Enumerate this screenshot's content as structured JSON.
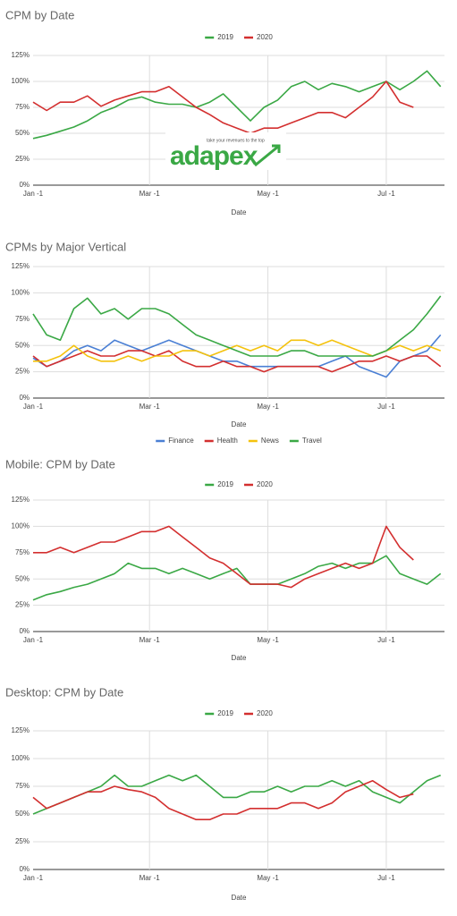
{
  "logo": {
    "name": "adapex",
    "tagline": "take your revenues to the top"
  },
  "chart_data": [
    {
      "type": "line",
      "title": "CPM by Date",
      "x_label": "Date",
      "legend": "top",
      "grid": true,
      "x": [
        0,
        7,
        14,
        21,
        28,
        35,
        42,
        49,
        56,
        63,
        70,
        77,
        84,
        91,
        98,
        105,
        112,
        119,
        126,
        133,
        140,
        147,
        154,
        161,
        168,
        175,
        182,
        189,
        196,
        203,
        210
      ],
      "xlim": [
        0,
        212
      ],
      "xticks": [
        {
          "value": 0,
          "label": "Jan -1"
        },
        {
          "value": 60,
          "label": "Mar -1"
        },
        {
          "value": 121,
          "label": "May -1"
        },
        {
          "value": 182,
          "label": "Jul -1"
        }
      ],
      "ylim": [
        0,
        125
      ],
      "yticks": [
        {
          "value": 0,
          "label": "0%"
        },
        {
          "value": 25,
          "label": "25%"
        },
        {
          "value": 50,
          "label": "50%"
        },
        {
          "value": 75,
          "label": "75%"
        },
        {
          "value": 100,
          "label": "100%"
        },
        {
          "value": 125,
          "label": "125%"
        }
      ],
      "series": [
        {
          "name": "2019",
          "color": "#3aa845",
          "values": [
            45,
            48,
            52,
            56,
            62,
            70,
            75,
            82,
            85,
            80,
            78,
            78,
            75,
            80,
            88,
            75,
            62,
            75,
            82,
            95,
            100,
            92,
            98,
            95,
            90,
            95,
            100,
            92,
            100,
            110,
            95
          ]
        },
        {
          "name": "2020",
          "color": "#d32f2f",
          "values": [
            80,
            72,
            80,
            80,
            86,
            76,
            82,
            86,
            90,
            90,
            95,
            85,
            75,
            68,
            60,
            55,
            50,
            55,
            55,
            60,
            65,
            70,
            70,
            65,
            75,
            85,
            100,
            80,
            75,
            null,
            null
          ]
        }
      ]
    },
    {
      "type": "line",
      "title": "CPMs by Major Vertical",
      "x_label": "Date",
      "legend": "bottom",
      "grid": true,
      "x": [
        0,
        7,
        14,
        21,
        28,
        35,
        42,
        49,
        56,
        63,
        70,
        77,
        84,
        91,
        98,
        105,
        112,
        119,
        126,
        133,
        140,
        147,
        154,
        161,
        168,
        175,
        182,
        189,
        196,
        203,
        210
      ],
      "xlim": [
        0,
        212
      ],
      "xticks": [
        {
          "value": 0,
          "label": "Jan -1"
        },
        {
          "value": 60,
          "label": "Mar -1"
        },
        {
          "value": 121,
          "label": "May -1"
        },
        {
          "value": 182,
          "label": "Jul -1"
        }
      ],
      "ylim": [
        0,
        125
      ],
      "yticks": [
        {
          "value": 0,
          "label": "0%"
        },
        {
          "value": 25,
          "label": "25%"
        },
        {
          "value": 50,
          "label": "50%"
        },
        {
          "value": 75,
          "label": "75%"
        },
        {
          "value": 100,
          "label": "100%"
        },
        {
          "value": 125,
          "label": "125%"
        }
      ],
      "series": [
        {
          "name": "Finance",
          "color": "#4a7fd4",
          "values": [
            38,
            30,
            35,
            45,
            50,
            45,
            55,
            50,
            45,
            50,
            55,
            50,
            45,
            40,
            35,
            35,
            30,
            30,
            30,
            30,
            30,
            30,
            35,
            40,
            30,
            25,
            20,
            35,
            40,
            45,
            60
          ]
        },
        {
          "name": "Health",
          "color": "#d32f2f",
          "values": [
            40,
            30,
            35,
            40,
            45,
            40,
            40,
            45,
            45,
            40,
            45,
            35,
            30,
            30,
            35,
            30,
            30,
            25,
            30,
            30,
            30,
            30,
            25,
            30,
            35,
            35,
            40,
            35,
            40,
            40,
            30
          ]
        },
        {
          "name": "News",
          "color": "#f4c20d",
          "values": [
            35,
            35,
            40,
            50,
            40,
            35,
            35,
            40,
            35,
            40,
            40,
            45,
            45,
            40,
            45,
            50,
            45,
            50,
            45,
            55,
            55,
            50,
            55,
            50,
            45,
            40,
            45,
            50,
            45,
            50,
            45
          ]
        },
        {
          "name": "Travel",
          "color": "#3aa845",
          "values": [
            80,
            60,
            55,
            85,
            95,
            80,
            85,
            75,
            85,
            85,
            80,
            70,
            60,
            55,
            50,
            45,
            40,
            40,
            40,
            45,
            45,
            40,
            40,
            40,
            40,
            40,
            45,
            55,
            65,
            80,
            97
          ]
        }
      ]
    },
    {
      "type": "line",
      "title": "Mobile: CPM by Date",
      "x_label": "Date",
      "legend": "top",
      "grid": true,
      "x": [
        0,
        7,
        14,
        21,
        28,
        35,
        42,
        49,
        56,
        63,
        70,
        77,
        84,
        91,
        98,
        105,
        112,
        119,
        126,
        133,
        140,
        147,
        154,
        161,
        168,
        175,
        182,
        189,
        196,
        203,
        210
      ],
      "xlim": [
        0,
        212
      ],
      "xticks": [
        {
          "value": 0,
          "label": "Jan -1"
        },
        {
          "value": 60,
          "label": "Mar -1"
        },
        {
          "value": 121,
          "label": "May -1"
        },
        {
          "value": 182,
          "label": "Jul -1"
        }
      ],
      "ylim": [
        0,
        125
      ],
      "yticks": [
        {
          "value": 0,
          "label": "0%"
        },
        {
          "value": 25,
          "label": "25%"
        },
        {
          "value": 50,
          "label": "50%"
        },
        {
          "value": 75,
          "label": "75%"
        },
        {
          "value": 100,
          "label": "100%"
        },
        {
          "value": 125,
          "label": "125%"
        }
      ],
      "series": [
        {
          "name": "2019",
          "color": "#3aa845",
          "values": [
            30,
            35,
            38,
            42,
            45,
            50,
            55,
            65,
            60,
            60,
            55,
            60,
            55,
            50,
            55,
            60,
            45,
            45,
            45,
            50,
            55,
            62,
            65,
            60,
            65,
            65,
            72,
            55,
            50,
            45,
            55
          ]
        },
        {
          "name": "2020",
          "color": "#d32f2f",
          "values": [
            75,
            75,
            80,
            75,
            80,
            85,
            85,
            90,
            95,
            95,
            100,
            90,
            80,
            70,
            65,
            55,
            45,
            45,
            45,
            42,
            50,
            55,
            60,
            65,
            60,
            65,
            100,
            80,
            68,
            null,
            null
          ]
        }
      ]
    },
    {
      "type": "line",
      "title": "Desktop: CPM by Date",
      "x_label": "Date",
      "legend": "top",
      "grid": true,
      "x": [
        0,
        7,
        14,
        21,
        28,
        35,
        42,
        49,
        56,
        63,
        70,
        77,
        84,
        91,
        98,
        105,
        112,
        119,
        126,
        133,
        140,
        147,
        154,
        161,
        168,
        175,
        182,
        189,
        196,
        203,
        210
      ],
      "xlim": [
        0,
        212
      ],
      "xticks": [
        {
          "value": 0,
          "label": "Jan -1"
        },
        {
          "value": 60,
          "label": "Mar -1"
        },
        {
          "value": 121,
          "label": "May -1"
        },
        {
          "value": 182,
          "label": "Jul -1"
        }
      ],
      "ylim": [
        0,
        125
      ],
      "yticks": [
        {
          "value": 0,
          "label": "0%"
        },
        {
          "value": 25,
          "label": "25%"
        },
        {
          "value": 50,
          "label": "50%"
        },
        {
          "value": 75,
          "label": "75%"
        },
        {
          "value": 100,
          "label": "100%"
        },
        {
          "value": 125,
          "label": "125%"
        }
      ],
      "series": [
        {
          "name": "2019",
          "color": "#3aa845",
          "values": [
            50,
            55,
            60,
            65,
            70,
            75,
            85,
            75,
            75,
            80,
            85,
            80,
            85,
            75,
            65,
            65,
            70,
            70,
            75,
            70,
            75,
            75,
            80,
            75,
            80,
            70,
            65,
            60,
            70,
            80,
            85
          ]
        },
        {
          "name": "2020",
          "color": "#d32f2f",
          "values": [
            65,
            55,
            60,
            65,
            70,
            70,
            75,
            72,
            70,
            65,
            55,
            50,
            45,
            45,
            50,
            50,
            55,
            55,
            55,
            60,
            60,
            55,
            60,
            70,
            75,
            80,
            72,
            65,
            68,
            null,
            null
          ]
        }
      ]
    }
  ]
}
